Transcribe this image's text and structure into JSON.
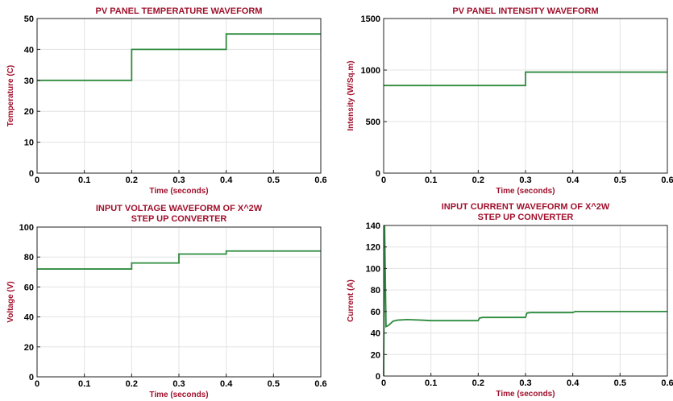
{
  "colors": {
    "title": "#a0102c",
    "trace": "#2e8b3e",
    "grid": "#e3e3e3",
    "axis": "#222222"
  },
  "chart_data": [
    {
      "type": "line",
      "title": "PV PANEL TEMPERATURE WAVEFORM",
      "xlabel": "Time (seconds)",
      "ylabel": "Temperature (C)",
      "xlim": [
        0,
        0.6
      ],
      "ylim": [
        0,
        50
      ],
      "xticks": [
        "0",
        "0.1",
        "0.2",
        "0.3",
        "0.4",
        "0.5",
        "0.6"
      ],
      "yticks": [
        "0",
        "10",
        "20",
        "30",
        "40",
        "50"
      ],
      "grid": true,
      "series": [
        {
          "x": [
            0,
            0.2,
            0.2,
            0.4,
            0.4,
            0.6
          ],
          "y": [
            30,
            30,
            40,
            40,
            45,
            45
          ]
        }
      ]
    },
    {
      "type": "line",
      "title": "PV PANEL INTENSITY WAVEFORM",
      "xlabel": "Time (seconds)",
      "ylabel": "Intensity (W/Sq.m)",
      "xlim": [
        0,
        0.6
      ],
      "ylim": [
        0,
        1500
      ],
      "xticks": [
        "0",
        "0.1",
        "0.2",
        "0.3",
        "0.4",
        "0.5",
        "0.6"
      ],
      "yticks": [
        "0",
        "500",
        "1000",
        "1500"
      ],
      "grid": true,
      "series": [
        {
          "x": [
            0,
            0.3,
            0.3,
            0.6
          ],
          "y": [
            850,
            850,
            980,
            980
          ]
        }
      ]
    },
    {
      "type": "line",
      "title": "INPUT VOLTAGE WAVEFORM OF X^2W STEP UP CONVERTER",
      "xlabel": "Time (seconds)",
      "ylabel": "Voltage (V)",
      "xlim": [
        0,
        0.6
      ],
      "ylim": [
        0,
        100
      ],
      "xticks": [
        "0",
        "0.1",
        "0.2",
        "0.3",
        "0.4",
        "0.5",
        "0.6"
      ],
      "yticks": [
        "0",
        "20",
        "40",
        "60",
        "80",
        "100"
      ],
      "grid": true,
      "series": [
        {
          "x": [
            0,
            0.2,
            0.2,
            0.3,
            0.3,
            0.4,
            0.4,
            0.6
          ],
          "y": [
            72,
            72,
            76,
            76,
            82,
            82,
            84,
            84
          ]
        }
      ]
    },
    {
      "type": "line",
      "title": "INPUT CURRENT WAVEFORM OF X^2W STEP UP CONVERTER",
      "xlabel": "Time (seconds)",
      "ylabel": "Current (A)",
      "xlim": [
        0,
        0.6
      ],
      "ylim": [
        0,
        140
      ],
      "xticks": [
        "0",
        "0.1",
        "0.2",
        "0.3",
        "0.4",
        "0.5",
        "0.6"
      ],
      "yticks": [
        "0",
        "20",
        "40",
        "60",
        "80",
        "100",
        "120",
        "140"
      ],
      "grid": true,
      "series": [
        {
          "x": [
            0,
            0.002,
            0.005,
            0.01,
            0.02,
            0.03,
            0.05,
            0.08,
            0.1,
            0.2,
            0.203,
            0.21,
            0.3,
            0.303,
            0.31,
            0.4,
            0.405,
            0.6
          ],
          "y": [
            0,
            140,
            46,
            47,
            51,
            52,
            52.5,
            52,
            51.5,
            51.5,
            54,
            54.5,
            54.5,
            58.5,
            59,
            59,
            60,
            60
          ]
        }
      ]
    }
  ]
}
